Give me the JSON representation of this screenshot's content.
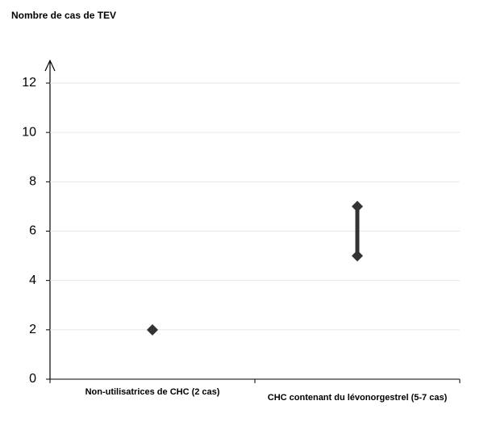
{
  "chart_data": {
    "type": "range",
    "title": "Nombre de cas de TEV",
    "categories": [
      "Non-utilisatrices de CHC (2 cas)",
      "CHC contenant du lévonorgestrel (5-7 cas)"
    ],
    "min": [
      2,
      5
    ],
    "max": [
      2,
      7
    ],
    "color": "#333333",
    "ylim": [
      0,
      12
    ],
    "yticks": [
      0,
      2,
      4,
      6,
      8,
      10,
      12
    ],
    "grid": true
  }
}
